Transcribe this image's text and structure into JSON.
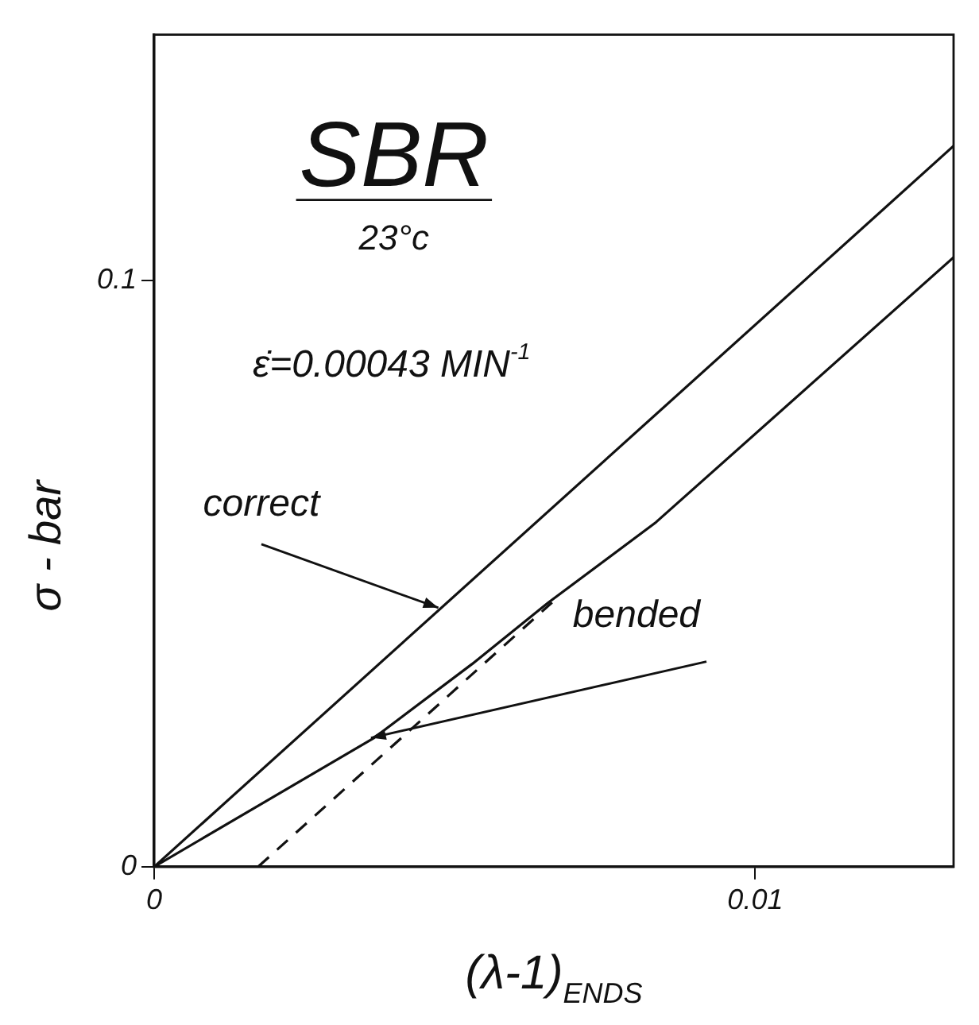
{
  "chart_data": {
    "type": "line",
    "title": "SBR",
    "subtitle": "23°c",
    "xlabel": "(λ-1)$_{ENDS}$",
    "ylabel": "σ - bar",
    "xlim": [
      0,
      0.0133
    ],
    "ylim": [
      0,
      0.142
    ],
    "xticks": [
      0,
      0.01
    ],
    "yticks": [
      0,
      0.1
    ],
    "grid": false,
    "legend": false,
    "marker": "none",
    "series": [
      {
        "color": "#111111",
        "x": [
          0,
          0.0133
        ],
        "values": [
          0,
          0.123
        ]
      },
      {
        "color": "#111111",
        "x": [
          0,
          0.00366,
          0.00529,
          0.00656,
          0.00835,
          0.0133
        ],
        "values": [
          0,
          0.022,
          0.0346,
          0.0451,
          0.0588,
          0.104
        ]
      },
      {
        "color": "#111111",
        "line_style": "dashed",
        "x": [
          0.00173,
          0.00662
        ],
        "values": [
          0,
          0.0451
        ]
      }
    ],
    "annotations": [
      "ε̇=0.00043 MIN$^{-1}$",
      {
        "text": "correct",
        "x": 0.00478,
        "y": 0.0442
      },
      {
        "text": "bended",
        "x": 0.00366,
        "y": 0.022
      }
    ]
  }
}
